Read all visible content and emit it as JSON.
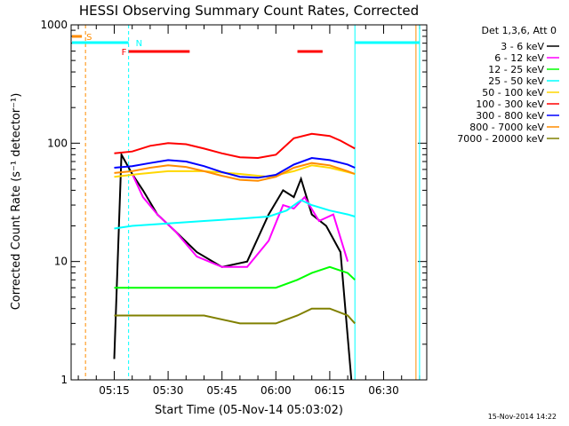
{
  "chart_data": {
    "type": "line",
    "title": "HESSI Observing Summary Count Rates, Corrected",
    "xlabel": "Start Time (05-Nov-14 05:03:02)",
    "ylabel": "Corrected Count Rate (s⁻¹ detector⁻¹)",
    "yscale": "log",
    "ylim": [
      1,
      1000
    ],
    "xlim": [
      "05:03",
      "06:42"
    ],
    "x_ticks": [
      "05:15",
      "05:30",
      "05:45",
      "06:00",
      "06:15",
      "06:30"
    ],
    "y_ticks": [
      "1",
      "10",
      "100",
      "1000"
    ],
    "legend_title": "Det 1,3,6, Att 0",
    "legend_position": "right",
    "timestamp": "15-Nov-2014 14:22",
    "series": [
      {
        "name": "3 - 6 keV",
        "color": "#000000",
        "x": [
          "05:15",
          "05:17",
          "05:20",
          "05:23",
          "05:27",
          "05:32",
          "05:38",
          "05:45",
          "05:52",
          "05:58",
          "06:02",
          "06:05",
          "06:07",
          "06:10",
          "06:14",
          "06:18",
          "06:21"
        ],
        "values": [
          1.5,
          80,
          55,
          40,
          25,
          18,
          12,
          9,
          10,
          25,
          40,
          35,
          50,
          25,
          20,
          12,
          1
        ]
      },
      {
        "name": "6 - 12 keV",
        "color": "#ff00ff",
        "x": [
          "05:20",
          "05:23",
          "05:27",
          "05:32",
          "05:38",
          "05:45",
          "05:52",
          "05:58",
          "06:02",
          "06:05",
          "06:08",
          "06:12",
          "06:16",
          "06:20"
        ],
        "values": [
          55,
          35,
          25,
          18,
          11,
          9,
          9,
          15,
          30,
          28,
          35,
          22,
          25,
          10
        ]
      },
      {
        "name": "12 - 25 keV",
        "color": "#00ff00",
        "x": [
          "05:15",
          "05:20",
          "05:30",
          "05:40",
          "05:50",
          "06:00",
          "06:06",
          "06:10",
          "06:15",
          "06:20",
          "06:22"
        ],
        "values": [
          6,
          6,
          6,
          6,
          6,
          6,
          7,
          8,
          9,
          8,
          7
        ]
      },
      {
        "name": "25 - 50 keV",
        "color": "#00ffff",
        "x": [
          "05:15",
          "05:20",
          "05:30",
          "05:40",
          "05:50",
          "05:58",
          "06:03",
          "06:07",
          "06:10",
          "06:15",
          "06:20",
          "06:22"
        ],
        "values": [
          19,
          20,
          21,
          22,
          23,
          24,
          27,
          33,
          30,
          27,
          25,
          24
        ]
      },
      {
        "name": "50 - 100 keV",
        "color": "#ffd700",
        "x": [
          "05:15",
          "05:22",
          "05:30",
          "05:40",
          "05:50",
          "05:58",
          "06:05",
          "06:10",
          "06:15",
          "06:20",
          "06:22"
        ],
        "values": [
          52,
          55,
          58,
          58,
          55,
          52,
          58,
          65,
          62,
          57,
          55
        ]
      },
      {
        "name": "100 - 300 keV",
        "color": "#ff0000",
        "x": [
          "05:15",
          "05:20",
          "05:25",
          "05:30",
          "05:35",
          "05:40",
          "05:45",
          "05:50",
          "05:55",
          "06:00",
          "06:05",
          "06:10",
          "06:15",
          "06:18",
          "06:22"
        ],
        "values": [
          82,
          85,
          95,
          100,
          98,
          90,
          82,
          76,
          75,
          80,
          110,
          120,
          115,
          105,
          90
        ]
      },
      {
        "name": "300 - 800 keV",
        "color": "#0000ff",
        "x": [
          "05:15",
          "05:20",
          "05:25",
          "05:30",
          "05:35",
          "05:40",
          "05:45",
          "05:50",
          "05:55",
          "06:00",
          "06:05",
          "06:10",
          "06:15",
          "06:20",
          "06:22"
        ],
        "values": [
          62,
          64,
          68,
          72,
          70,
          64,
          57,
          52,
          51,
          54,
          66,
          75,
          72,
          66,
          62
        ]
      },
      {
        "name": "800 - 7000 keV",
        "color": "#ff8c00",
        "x": [
          "05:15",
          "05:20",
          "05:25",
          "05:30",
          "05:35",
          "05:40",
          "05:45",
          "05:50",
          "05:55",
          "06:00",
          "06:05",
          "06:10",
          "06:15",
          "06:20",
          "06:22"
        ],
        "values": [
          56,
          58,
          62,
          65,
          63,
          58,
          53,
          49,
          48,
          52,
          62,
          68,
          65,
          58,
          55
        ]
      },
      {
        "name": "7000 - 20000 keV",
        "color": "#808000",
        "x": [
          "05:15",
          "05:20",
          "05:30",
          "05:40",
          "05:50",
          "06:00",
          "06:06",
          "06:10",
          "06:15",
          "06:20",
          "06:22"
        ],
        "values": [
          3.5,
          3.5,
          3.5,
          3.5,
          3.0,
          3.0,
          3.5,
          4.0,
          4.0,
          3.5,
          3.0
        ]
      }
    ],
    "flags": [
      {
        "label": "S",
        "color": "#ff8c00",
        "x": [
          "05:03",
          "05:06"
        ]
      },
      {
        "label": "N",
        "color": "#00ffff",
        "x": [
          "05:03",
          "05:19"
        ]
      },
      {
        "label": "N",
        "color": "#00ffff",
        "x": [
          "06:22",
          "06:40"
        ]
      },
      {
        "label": "F",
        "color": "#ff0000",
        "x": [
          "05:19",
          "05:36"
        ]
      },
      {
        "label": "F",
        "color": "#ff0000",
        "x": [
          "06:06",
          "06:13"
        ]
      }
    ]
  }
}
